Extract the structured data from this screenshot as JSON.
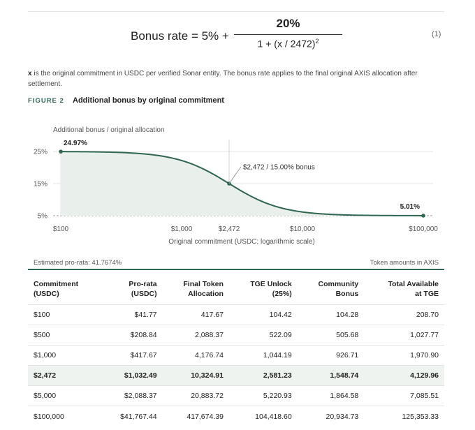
{
  "formula": {
    "lhs": "Bonus rate = 5% +",
    "numerator": "20%",
    "denominator": "1 + (x / 2472)",
    "exponent": "2",
    "eq_number": "(1)"
  },
  "note": {
    "var": "x",
    "text": " is the original commitment in USDC per verified Sonar entity. The bonus rate applies to the final original AXIS allocation after settlement."
  },
  "figure": {
    "label": "FIGURE 2",
    "title": "Additional bonus by original commitment"
  },
  "chart_data": {
    "type": "area",
    "ylabel": "Additional bonus / original allocation",
    "xlabel": "Original commitment (USDC; logarithmic scale)",
    "x_scale": "log",
    "xlim": [
      100,
      100000
    ],
    "ylim": [
      5,
      25
    ],
    "xticks": [
      {
        "value": 100,
        "label": "$100"
      },
      {
        "value": 1000,
        "label": "$1,000"
      },
      {
        "value": 2472,
        "label": "$2,472"
      },
      {
        "value": 10000,
        "label": "$10,000"
      },
      {
        "value": 100000,
        "label": "$100,000"
      }
    ],
    "yticks": [
      {
        "value": 25,
        "label": "25%"
      },
      {
        "value": 15,
        "label": "15%"
      },
      {
        "value": 5,
        "label": "5%"
      }
    ],
    "formula": "5 + 20 / (1 + (x / 2472)^2)",
    "points": [
      {
        "x": 100,
        "y": 24.97,
        "label": "24.97%"
      },
      {
        "x": 2472,
        "y": 15.0,
        "label": "$2,472 / 15.00% bonus"
      },
      {
        "x": 100000,
        "y": 5.01,
        "label": "5.01%"
      }
    ],
    "color": "#2f6650",
    "fill": "#e9efeb"
  },
  "table_meta": {
    "left": "Estimated pro-rata: 41.7674%",
    "right": "Token amounts in AXIS"
  },
  "table": {
    "headers": [
      [
        "Commitment",
        "(USDC)"
      ],
      [
        "Pro-rata",
        "(USDC)"
      ],
      [
        "Final Token",
        "Allocation"
      ],
      [
        "TGE Unlock",
        "(25%)"
      ],
      [
        "Community",
        "Bonus"
      ],
      [
        "Total Available",
        "at TGE"
      ]
    ],
    "rows": [
      [
        "$100",
        "$41.77",
        "417.67",
        "104.42",
        "104.28",
        "208.70"
      ],
      [
        "$500",
        "$208.84",
        "2,088.37",
        "522.09",
        "505.68",
        "1,027.77"
      ],
      [
        "$1,000",
        "$417.67",
        "4,176.74",
        "1,044.19",
        "926.71",
        "1,970.90"
      ],
      [
        "$2,472",
        "$1,032.49",
        "10,324.91",
        "2,581.23",
        "1,548.74",
        "4,129.96"
      ],
      [
        "$5,000",
        "$2,088.37",
        "20,883.72",
        "5,220.93",
        "1,864.58",
        "7,085.51"
      ],
      [
        "$100,000",
        "$41,767.44",
        "417,674.39",
        "104,418.60",
        "20,934.73",
        "125,353.33"
      ]
    ],
    "highlight_row": 3
  }
}
